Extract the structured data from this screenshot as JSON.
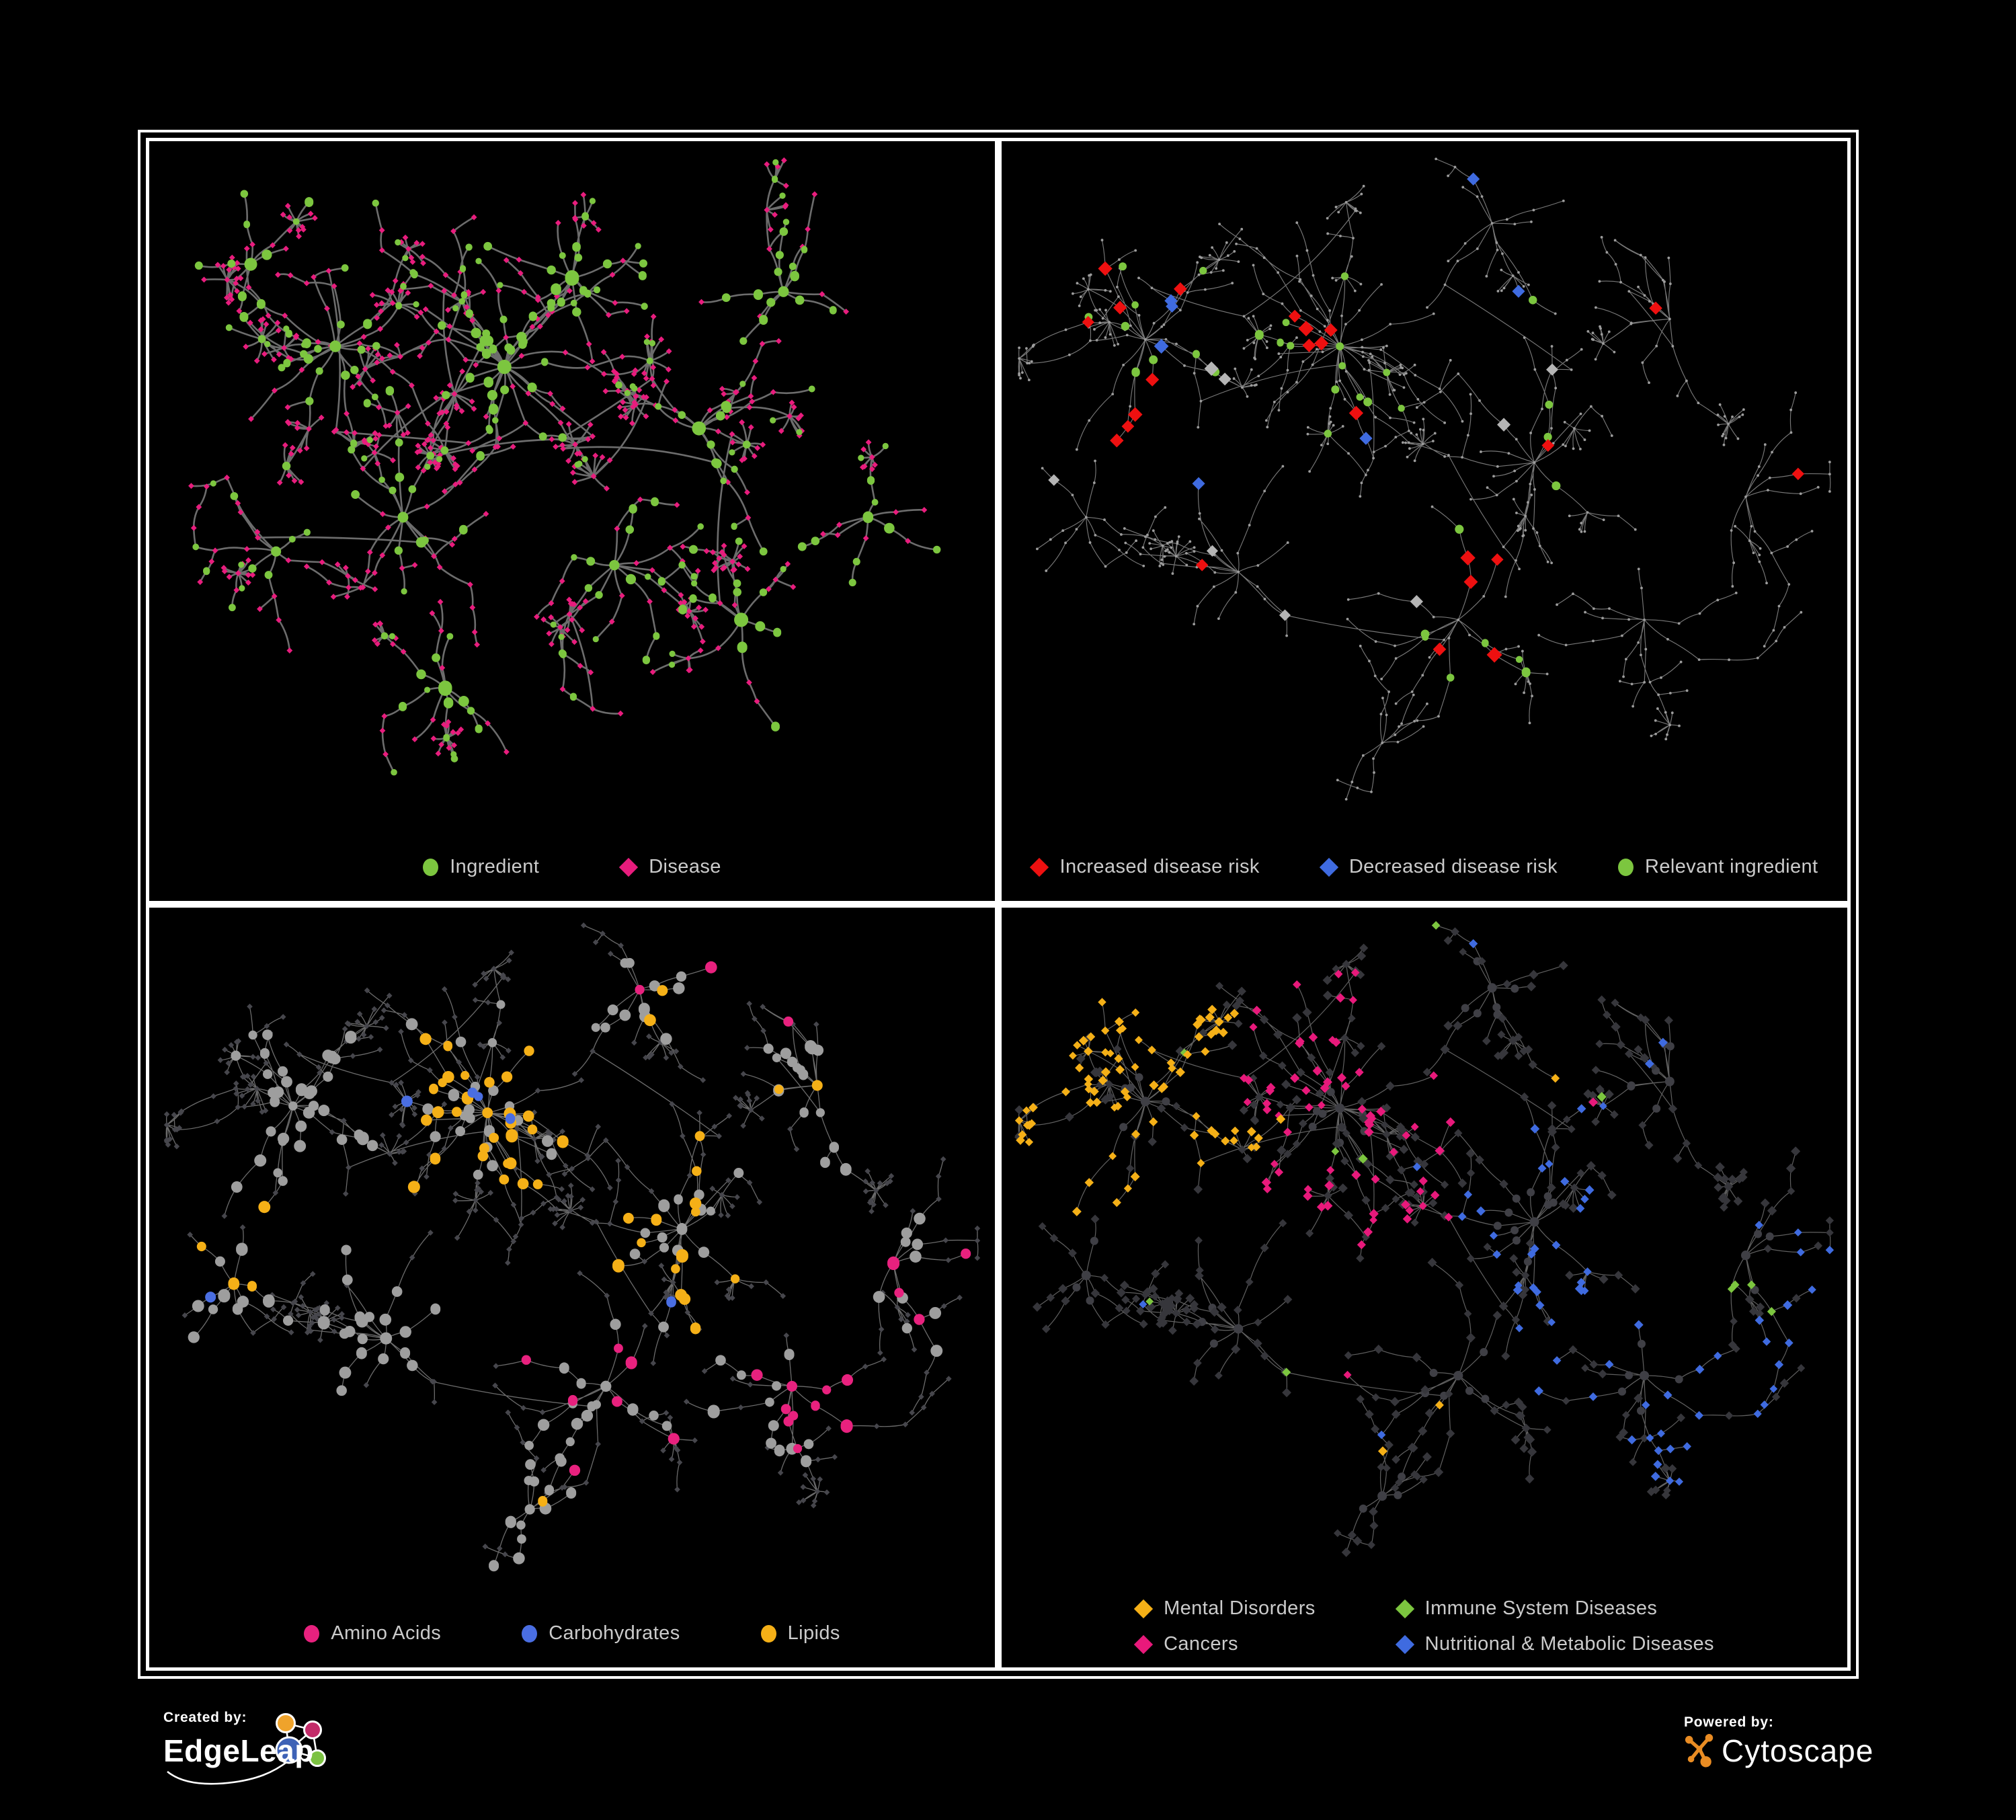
{
  "page": {
    "background": "#000000",
    "frame_color": "#ffffff",
    "legend_text_color": "#cbcbcb"
  },
  "panels": [
    {
      "id": "ingredient-disease",
      "legend": [
        {
          "label": "Ingredient",
          "shape": "circle",
          "color": "#7CC63F"
        },
        {
          "label": "Disease",
          "shape": "diamond",
          "color": "#E81C7D"
        }
      ],
      "network": {
        "seed": 7,
        "style": "p1",
        "hfrac": 0.9,
        "edge_color": "#757575",
        "edge_width": 2.6,
        "edge_opacity": 0.92,
        "curve": 0.3,
        "burstP": 0.12,
        "burstK": 10,
        "cross": 45,
        "palette": {
          "green": "#7CC63F",
          "pink": "#E81C7D"
        },
        "clusters": [
          [
            0.42,
            0.33,
            24,
            4,
            46
          ],
          [
            0.22,
            0.3,
            14,
            4,
            44
          ],
          [
            0.5,
            0.2,
            12,
            3,
            42
          ],
          [
            0.65,
            0.42,
            12,
            3,
            42
          ],
          [
            0.3,
            0.55,
            12,
            3,
            44
          ],
          [
            0.55,
            0.62,
            10,
            3,
            42
          ],
          [
            0.75,
            0.22,
            9,
            3,
            40
          ],
          [
            0.7,
            0.7,
            8,
            3,
            40
          ],
          [
            0.15,
            0.6,
            7,
            3,
            38
          ],
          [
            0.35,
            0.8,
            8,
            2,
            38
          ],
          [
            0.85,
            0.55,
            6,
            2,
            36
          ],
          [
            0.12,
            0.18,
            6,
            2,
            36
          ]
        ]
      }
    },
    {
      "id": "disease-risk",
      "legend": [
        {
          "label": "Increased disease risk",
          "shape": "diamond",
          "color": "#EE1010"
        },
        {
          "label": "Decreased disease risk",
          "shape": "diamond",
          "color": "#3F6BE0"
        },
        {
          "label": "Relevant ingredient",
          "shape": "circle",
          "color": "#7CC63F"
        }
      ],
      "network": {
        "seed": 104,
        "style": "p2",
        "hfrac": 0.9,
        "edge_color": "#8C8C8C",
        "edge_width": 1.15,
        "edge_opacity": 0.85,
        "curve": 0.22,
        "burstP": 0.1,
        "burstK": 9,
        "cross": 45,
        "core": [
          0,
          1,
          2,
          5
        ],
        "palette": {
          "red": "#EE1010",
          "blue": "#3F6BE0",
          "green": "#7CC63F",
          "grayDiamond": "#B5B5B5",
          "dot": "#9C9C9C"
        },
        "clusters": [
          [
            0.4,
            0.3,
            26,
            4,
            46
          ],
          [
            0.17,
            0.29,
            16,
            4,
            44
          ],
          [
            0.63,
            0.47,
            14,
            3,
            42
          ],
          [
            0.79,
            0.26,
            10,
            3,
            40
          ],
          [
            0.28,
            0.63,
            12,
            3,
            44
          ],
          [
            0.54,
            0.7,
            10,
            3,
            42
          ],
          [
            0.76,
            0.7,
            9,
            3,
            40
          ],
          [
            0.58,
            0.12,
            9,
            3,
            40
          ],
          [
            0.1,
            0.55,
            7,
            3,
            38
          ],
          [
            0.88,
            0.52,
            7,
            3,
            38
          ],
          [
            0.45,
            0.88,
            7,
            2,
            36
          ]
        ]
      }
    },
    {
      "id": "nutrient-classes",
      "legend": [
        {
          "label": "Amino Acids",
          "shape": "circle",
          "color": "#E8217E"
        },
        {
          "label": "Carbohydrates",
          "shape": "circle",
          "color": "#4A6EE2"
        },
        {
          "label": "Lipids",
          "shape": "circle",
          "color": "#F5B017"
        }
      ],
      "network": {
        "seed": 104,
        "style": "p3",
        "hfrac": 0.9,
        "edge_color": "#8F8F8F",
        "edge_width": 1.3,
        "edge_opacity": 0.75,
        "curve": 0.22,
        "burstP": 0.1,
        "burstK": 9,
        "cross": 45,
        "zones": {
          "0": "orange",
          "2": "orange",
          "5": "pink",
          "6": "pink",
          "9": "pink"
        },
        "palette": {
          "orange": "#F5B017",
          "pink": "#E8217E",
          "blue": "#4A6EE2",
          "grayCircle": "#9E9E9E",
          "dark": "#46464C"
        },
        "clusters": [
          [
            0.4,
            0.3,
            26,
            4,
            46
          ],
          [
            0.17,
            0.29,
            16,
            4,
            44
          ],
          [
            0.63,
            0.47,
            14,
            3,
            42
          ],
          [
            0.79,
            0.26,
            10,
            3,
            40
          ],
          [
            0.28,
            0.63,
            12,
            3,
            44
          ],
          [
            0.54,
            0.7,
            10,
            3,
            42
          ],
          [
            0.76,
            0.7,
            9,
            3,
            40
          ],
          [
            0.58,
            0.12,
            9,
            3,
            40
          ],
          [
            0.1,
            0.55,
            7,
            3,
            38
          ],
          [
            0.88,
            0.52,
            7,
            3,
            38
          ],
          [
            0.45,
            0.88,
            7,
            2,
            36
          ]
        ]
      }
    },
    {
      "id": "disease-classes",
      "legend": [
        {
          "label": "Mental Disorders",
          "shape": "diamond",
          "color": "#F5B017"
        },
        {
          "label": "Immune System Diseases",
          "shape": "diamond",
          "color": "#7CC63F"
        },
        {
          "label": "Cancers",
          "shape": "diamond",
          "color": "#E8197B"
        },
        {
          "label": "Nutritional & Metabolic Diseases",
          "shape": "diamond",
          "color": "#3F6BE0"
        }
      ],
      "network": {
        "seed": 104,
        "style": "p4",
        "hfrac": 0.88,
        "edge_color": "#787878",
        "edge_width": 1.2,
        "edge_opacity": 0.8,
        "curve": 0.22,
        "burstP": 0.1,
        "burstK": 9,
        "cross": 45,
        "zones": {
          "1": "orange",
          "0": "pink",
          "2": "blue",
          "6": "blue",
          "9": "blue"
        },
        "palette": {
          "orange": "#F5B017",
          "pink": "#E8197B",
          "blue": "#3F6BE0",
          "green": "#7CC63F",
          "dark": "#36363B",
          "hub": "#3F3F45"
        },
        "clusters": [
          [
            0.4,
            0.3,
            26,
            4,
            46
          ],
          [
            0.17,
            0.29,
            16,
            4,
            44
          ],
          [
            0.63,
            0.47,
            14,
            3,
            42
          ],
          [
            0.79,
            0.26,
            10,
            3,
            40
          ],
          [
            0.28,
            0.63,
            12,
            3,
            44
          ],
          [
            0.54,
            0.7,
            10,
            3,
            42
          ],
          [
            0.76,
            0.7,
            9,
            3,
            40
          ],
          [
            0.58,
            0.12,
            9,
            3,
            40
          ],
          [
            0.1,
            0.55,
            7,
            3,
            38
          ],
          [
            0.88,
            0.52,
            7,
            3,
            38
          ],
          [
            0.45,
            0.88,
            7,
            2,
            36
          ]
        ]
      }
    }
  ],
  "footer": {
    "left": {
      "eyebrow": "Created by:",
      "brand": "EdgeLeap"
    },
    "right": {
      "eyebrow": "Powered by:",
      "brand": "Cytoscape"
    },
    "edgeleap_logo_colors": {
      "blue": "#3E62B6",
      "orange": "#EFA32B",
      "magenta": "#C32B69",
      "green": "#7CC242",
      "outline": "#ffffff"
    },
    "cytoscape_logo_color": "#E98C23"
  }
}
